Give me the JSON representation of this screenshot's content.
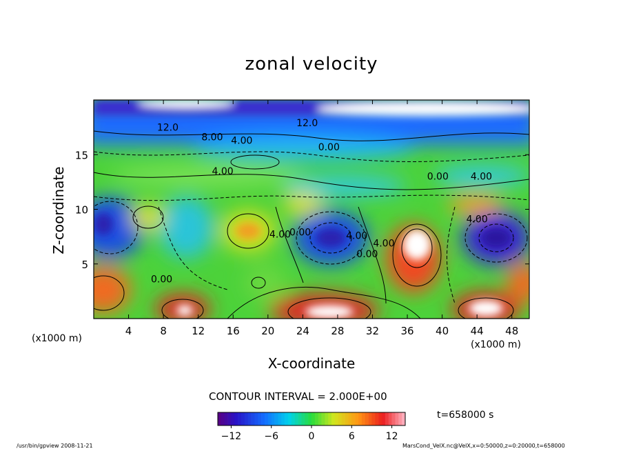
{
  "chart_data": {
    "type": "contour",
    "title": "zonal velocity",
    "xlabel": "X-coordinate",
    "ylabel": "Z-coordinate",
    "x_unit": "(x1000 m)",
    "z_unit": "(x1000 m)",
    "xlim": [
      0,
      50
    ],
    "zlim": [
      0,
      20
    ],
    "x_ticks": [
      4,
      8,
      12,
      16,
      20,
      24,
      28,
      32,
      36,
      40,
      44,
      48
    ],
    "z_ticks": [
      5,
      10,
      15
    ],
    "contour_interval": "CONTOUR INTERVAL = 2.000E+00",
    "contour_labels": [
      {
        "text": "12.0",
        "x": 8.5,
        "z": 17.2
      },
      {
        "text": "8.00",
        "x": 13.6,
        "z": 16.3
      },
      {
        "text": "4.00",
        "x": 17.0,
        "z": 16.0
      },
      {
        "text": "12.0",
        "x": 24.5,
        "z": 17.6
      },
      {
        "text": "0.00",
        "x": 27.0,
        "z": 15.4
      },
      {
        "text": "4.00",
        "x": 14.8,
        "z": 13.2
      },
      {
        "text": "0.00",
        "x": 39.5,
        "z": 12.7
      },
      {
        "text": "4.00",
        "x": 44.5,
        "z": 12.7
      },
      {
        "text": "4.00",
        "x": 44.0,
        "z": 8.8
      },
      {
        "text": "4.00",
        "x": 21.4,
        "z": 7.4
      },
      {
        "text": "0.00",
        "x": 23.7,
        "z": 7.6
      },
      {
        "text": "4.00",
        "x": 30.2,
        "z": 7.3
      },
      {
        "text": "0.00",
        "x": 31.4,
        "z": 5.6
      },
      {
        "text": "4.00",
        "x": 33.3,
        "z": 6.6
      },
      {
        "text": "0.00",
        "x": 7.8,
        "z": 3.3
      }
    ],
    "colorbar": {
      "min": -14,
      "max": 14,
      "tick_values": [
        -12,
        -6,
        0,
        6,
        12
      ],
      "tick_labels": [
        "−12",
        "−6",
        "0",
        "6",
        "12"
      ]
    },
    "time": "t=658000 s"
  },
  "footer": {
    "left": "/usr/bin/gpview  2008-11-21",
    "right": "MarsCond_VelX.nc@VelX,x=0:50000,z=0:20000,t=658000"
  }
}
